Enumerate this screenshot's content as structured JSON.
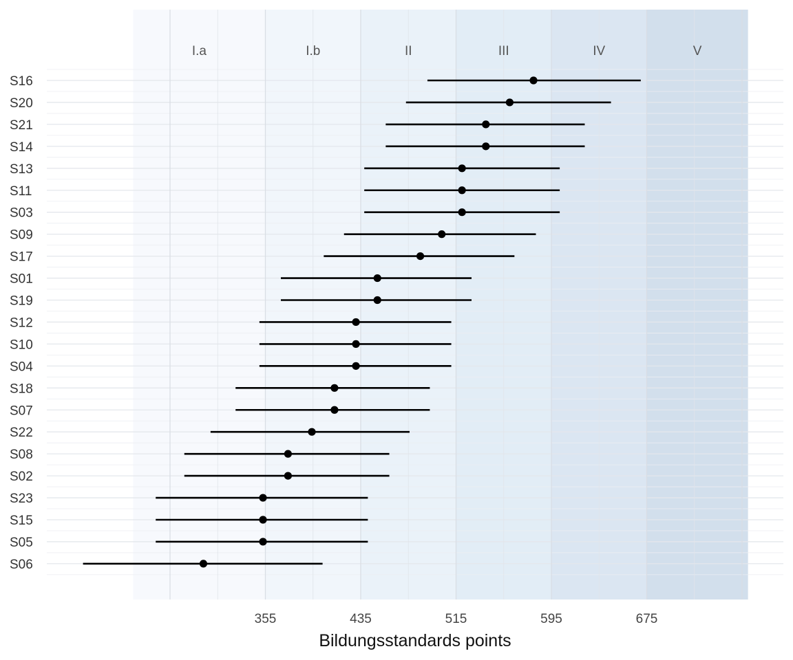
{
  "chart_data": {
    "type": "dot-interval",
    "xlabel": "Bildungsstandards points",
    "xlim": [
      244,
      760
    ],
    "x_ticks": [
      355,
      435,
      515,
      595,
      675
    ],
    "grid": true,
    "bands": [
      {
        "label": "I.a",
        "from": 244,
        "to": 355,
        "color": "#f7f9fd"
      },
      {
        "label": "I.b",
        "from": 355,
        "to": 435,
        "color": "#f1f6fb"
      },
      {
        "label": "II",
        "from": 435,
        "to": 515,
        "color": "#eaf2f9"
      },
      {
        "label": "III",
        "from": 515,
        "to": 595,
        "color": "#e2edf6"
      },
      {
        "label": "IV",
        "from": 595,
        "to": 675,
        "color": "#dbe6f2"
      },
      {
        "label": "V",
        "from": 675,
        "to": 760,
        "color": "#d2dfec"
      }
    ],
    "rows": [
      {
        "label": "S16",
        "value": 580,
        "low": 491,
        "high": 670
      },
      {
        "label": "S20",
        "value": 560,
        "low": 473,
        "high": 645
      },
      {
        "label": "S21",
        "value": 540,
        "low": 456,
        "high": 623
      },
      {
        "label": "S14",
        "value": 540,
        "low": 456,
        "high": 623
      },
      {
        "label": "S13",
        "value": 520,
        "low": 438,
        "high": 602
      },
      {
        "label": "S11",
        "value": 520,
        "low": 438,
        "high": 602
      },
      {
        "label": "S03",
        "value": 520,
        "low": 438,
        "high": 602
      },
      {
        "label": "S09",
        "value": 503,
        "low": 421,
        "high": 582
      },
      {
        "label": "S17",
        "value": 485,
        "low": 404,
        "high": 564
      },
      {
        "label": "S01",
        "value": 449,
        "low": 368,
        "high": 528
      },
      {
        "label": "S19",
        "value": 449,
        "low": 368,
        "high": 528
      },
      {
        "label": "S12",
        "value": 431,
        "low": 350,
        "high": 511
      },
      {
        "label": "S10",
        "value": 431,
        "low": 350,
        "high": 511
      },
      {
        "label": "S04",
        "value": 431,
        "low": 350,
        "high": 511
      },
      {
        "label": "S18",
        "value": 413,
        "low": 330,
        "high": 493
      },
      {
        "label": "S07",
        "value": 413,
        "low": 330,
        "high": 493
      },
      {
        "label": "S22",
        "value": 394,
        "low": 309,
        "high": 476
      },
      {
        "label": "S08",
        "value": 374,
        "low": 287,
        "high": 459
      },
      {
        "label": "S02",
        "value": 374,
        "low": 287,
        "high": 459
      },
      {
        "label": "S23",
        "value": 353,
        "low": 263,
        "high": 441
      },
      {
        "label": "S15",
        "value": 353,
        "low": 263,
        "high": 441
      },
      {
        "label": "S05",
        "value": 353,
        "low": 263,
        "high": 441
      },
      {
        "label": "S06",
        "value": 303,
        "low": 202,
        "high": 403
      }
    ]
  }
}
